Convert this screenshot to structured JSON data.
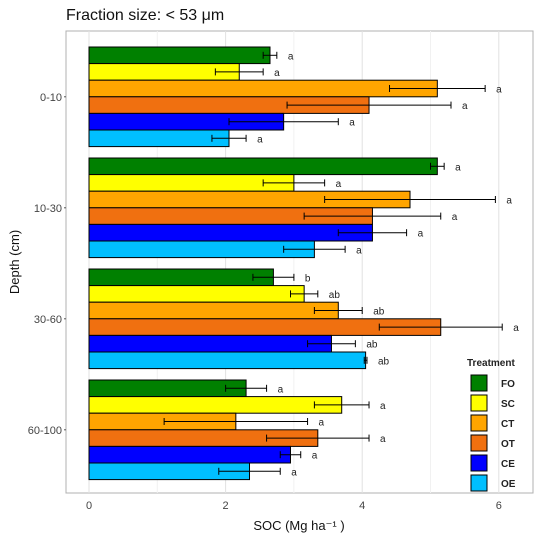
{
  "chart_data": {
    "type": "bar",
    "orientation": "horizontal",
    "title": "Fraction size: < 53 μm",
    "xlabel": "SOC (Mg ha⁻¹ )",
    "ylabel": "Depth (cm)",
    "xlim": [
      -0.3,
      6.6
    ],
    "xticks": [
      0,
      2,
      4,
      6
    ],
    "grid": true,
    "legend": {
      "title": "Treatment",
      "position": "bottom-right",
      "entries": [
        "FO",
        "SC",
        "CT",
        "OT",
        "CE",
        "OE"
      ]
    },
    "colors": {
      "FO": "#008000",
      "SC": "#ffff00",
      "CT": "#ffa500",
      "OT": "#f07010",
      "CE": "#0000ff",
      "OE": "#00bfff"
    },
    "categories": [
      "0-10",
      "10-30",
      "30-60",
      "60-100"
    ],
    "series": [
      {
        "name": "FO",
        "values": [
          2.65,
          5.1,
          2.7,
          2.3
        ],
        "errors": [
          0.1,
          0.1,
          0.3,
          0.3
        ],
        "letters": [
          "a",
          "a",
          "b",
          "a"
        ]
      },
      {
        "name": "SC",
        "values": [
          2.2,
          3.0,
          3.15,
          3.7
        ],
        "errors": [
          0.35,
          0.45,
          0.2,
          0.4
        ],
        "letters": [
          "a",
          "a",
          "ab",
          "a"
        ]
      },
      {
        "name": "CT",
        "values": [
          5.1,
          4.7,
          3.65,
          2.15
        ],
        "errors": [
          0.7,
          1.25,
          0.35,
          1.05
        ],
        "letters": [
          "a",
          "a",
          "ab",
          "a"
        ]
      },
      {
        "name": "OT",
        "values": [
          4.1,
          4.15,
          5.15,
          3.35
        ],
        "errors": [
          1.2,
          1.0,
          0.9,
          0.75
        ],
        "letters": [
          "a",
          "a",
          "a",
          "a"
        ]
      },
      {
        "name": "CE",
        "values": [
          2.85,
          4.15,
          3.55,
          2.95
        ],
        "errors": [
          0.8,
          0.5,
          0.35,
          0.15
        ],
        "letters": [
          "a",
          "a",
          "ab",
          "a"
        ]
      },
      {
        "name": "OE",
        "values": [
          2.05,
          3.3,
          4.05,
          2.35
        ],
        "errors": [
          0.25,
          0.45,
          0.02,
          0.45
        ],
        "letters": [
          "a",
          "a",
          "ab",
          "a"
        ]
      }
    ]
  }
}
